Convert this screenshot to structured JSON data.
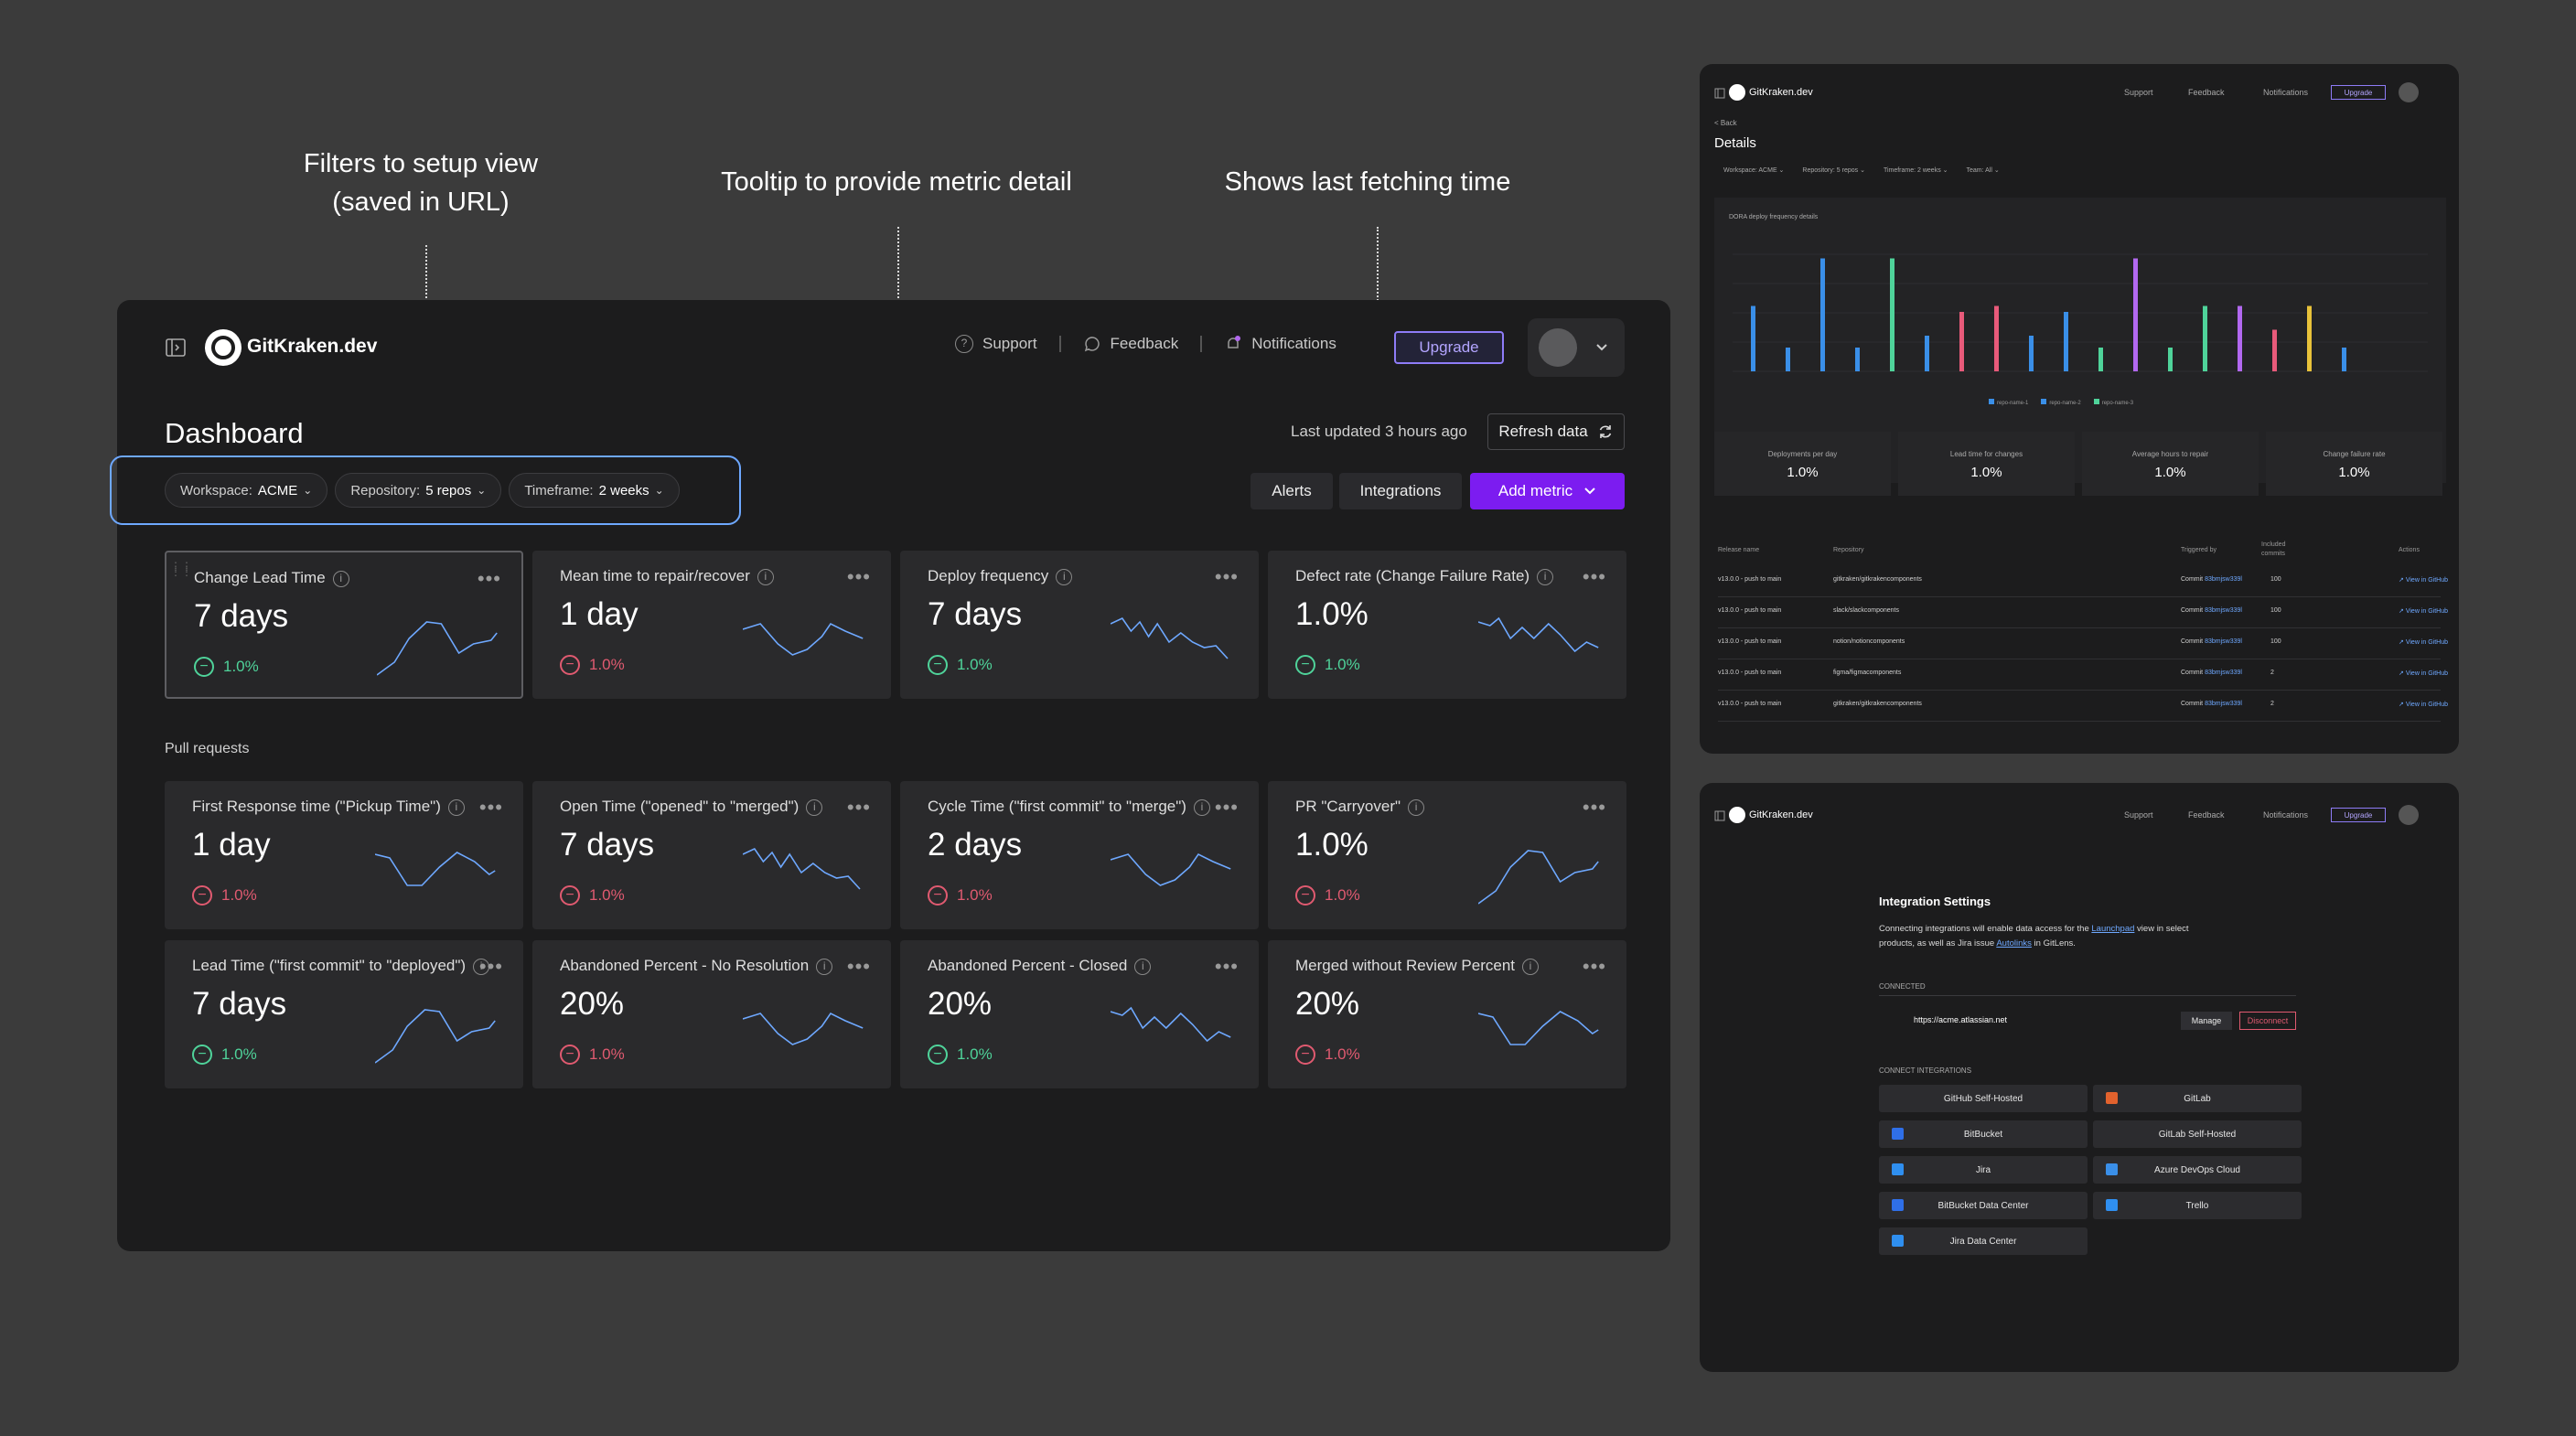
{
  "annotations": {
    "filters_line1": "Filters to setup view",
    "filters_line2": "(saved in URL)",
    "tooltip": "Tooltip to provide metric detail",
    "fetching": "Shows last fetching time"
  },
  "app": {
    "brand": "GitKraken.dev"
  },
  "nav": {
    "support": "Support",
    "feedback": "Feedback",
    "notifications": "Notifications",
    "upgrade": "Upgrade"
  },
  "dashboard": {
    "title": "Dashboard",
    "last_updated": "Last updated 3 hours ago",
    "refresh": "Refresh data",
    "filters": {
      "workspace_label": "Workspace:",
      "workspace_value": "ACME",
      "repository_label": "Repository:",
      "repository_value": "5 repos",
      "timeframe_label": "Timeframe:",
      "timeframe_value": "2 weeks"
    },
    "actions": {
      "alerts": "Alerts",
      "integrations": "Integrations",
      "add_metric": "Add metric"
    },
    "section_pr": "Pull requests",
    "dora": [
      {
        "title": "Change Lead Time",
        "value": "7 days",
        "change": "1.0%",
        "trend": "pos"
      },
      {
        "title": "Mean time to repair/recover",
        "value": "1 day",
        "change": "1.0%",
        "trend": "neg"
      },
      {
        "title": "Deploy frequency",
        "value": "7 days",
        "change": "1.0%",
        "trend": "pos"
      },
      {
        "title": "Defect rate (Change Failure Rate)",
        "value": "1.0%",
        "change": "1.0%",
        "trend": "pos"
      }
    ],
    "pr_row1": [
      {
        "title": "First Response time (\"Pickup Time\")",
        "value": "1 day",
        "change": "1.0%",
        "trend": "neg"
      },
      {
        "title": "Open Time (\"opened\" to \"merged\")",
        "value": "7 days",
        "change": "1.0%",
        "trend": "neg"
      },
      {
        "title": "Cycle Time (\"first commit\" to \"merge\")",
        "value": "2 days",
        "change": "1.0%",
        "trend": "neg"
      },
      {
        "title": "PR \"Carryover\"",
        "value": "1.0%",
        "change": "1.0%",
        "trend": "neg"
      }
    ],
    "pr_row2": [
      {
        "title": "Lead Time (\"first commit\" to \"deployed\")",
        "value": "7 days",
        "change": "1.0%",
        "trend": "pos"
      },
      {
        "title": "Abandoned Percent - No Resolution",
        "value": "20%",
        "change": "1.0%",
        "trend": "neg"
      },
      {
        "title": "Abandoned Percent - Closed",
        "value": "20%",
        "change": "1.0%",
        "trend": "pos"
      },
      {
        "title": "Merged without Review Percent",
        "value": "20%",
        "change": "1.0%",
        "trend": "neg"
      }
    ]
  },
  "details": {
    "back": "< Back",
    "title": "Details",
    "filters": {
      "workspace": "Workspace: ACME ⌄",
      "repository": "Repository: 5 repos ⌄",
      "timeframe": "Timeframe: 2 weeks ⌄",
      "team": "Team: All ⌄"
    },
    "chart_title": "DORA deploy frequency details",
    "legend": [
      "repo-name-1",
      "repo-name-2",
      "repo-name-3"
    ],
    "stats": [
      {
        "label": "Deployments per day",
        "value": "1.0%"
      },
      {
        "label": "Lead time for changes",
        "value": "1.0%"
      },
      {
        "label": "Average hours to repair",
        "value": "1.0%"
      },
      {
        "label": "Change failure rate",
        "value": "1.0%"
      }
    ],
    "table_headers": {
      "release": "Release name",
      "repository": "Repository",
      "triggered": "Triggered by",
      "included1": "Included",
      "included2": "commits",
      "actions": "Actions"
    },
    "rows": [
      {
        "release": "v13.0.0 - push to main",
        "repo": "gitkraken/gitkrakencomponents",
        "commit_label": "Commit",
        "commit": "83bmjsw339l",
        "count": "100",
        "action": "View in GitHub"
      },
      {
        "release": "v13.0.0 - push to main",
        "repo": "slack/slackcomponents",
        "commit_label": "Commit",
        "commit": "83bmjsw339l",
        "count": "100",
        "action": "View in GitHub"
      },
      {
        "release": "v13.0.0 - push to main",
        "repo": "notion/notioncomponents",
        "commit_label": "Commit",
        "commit": "83bmjsw339l",
        "count": "100",
        "action": "View in GitHub"
      },
      {
        "release": "v13.0.0 - push to main",
        "repo": "figma/figmacomponents",
        "commit_label": "Commit",
        "commit": "83bmjsw339l",
        "count": "2",
        "action": "View in GitHub"
      },
      {
        "release": "v13.0.0 - push to main",
        "repo": "gitkraken/gitkrakencomponents",
        "commit_label": "Commit",
        "commit": "83bmjsw339l",
        "count": "2",
        "action": "View in GitHub"
      }
    ]
  },
  "chart_data": {
    "type": "bar",
    "title": "DORA deploy frequency details",
    "series_colors": [
      "#3a8fe8",
      "#e85a7a",
      "#4fd39a",
      "#b268f0",
      "#e8c23a"
    ],
    "values": [
      0.55,
      0.2,
      0.95,
      0.2,
      0.95,
      0.3,
      0.5,
      0.55,
      0.3,
      0.5,
      0.2,
      0.95,
      0.2,
      0.55,
      0.55,
      0.35,
      0.55,
      0.2
    ],
    "colors": [
      0,
      0,
      0,
      0,
      2,
      0,
      1,
      1,
      0,
      0,
      2,
      3,
      2,
      2,
      3,
      1,
      4,
      0
    ],
    "legend": [
      "repo-name-1",
      "repo-name-2",
      "repo-name-3"
    ]
  },
  "integrations": {
    "title": "Integration Settings",
    "desc1": "Connecting integrations will enable data access for the",
    "launchpad": "Launchpad",
    "desc2": "view in select",
    "desc3": "products, as well as Jira issue",
    "autolinks": "Autolinks",
    "desc4": "in GitLens.",
    "connected": "CONNECTED",
    "url": "https://acme.atlassian.net",
    "manage": "Manage",
    "disconnect": "Disconnect",
    "connect_header": "CONNECT INTEGRATIONS",
    "items": [
      "GitHub Self-Hosted",
      "GitLab",
      "BitBucket",
      "GitLab Self-Hosted",
      "Jira",
      "Azure DevOps Cloud",
      "BitBucket Data Center",
      "Trello",
      "Jira Data Center"
    ]
  }
}
